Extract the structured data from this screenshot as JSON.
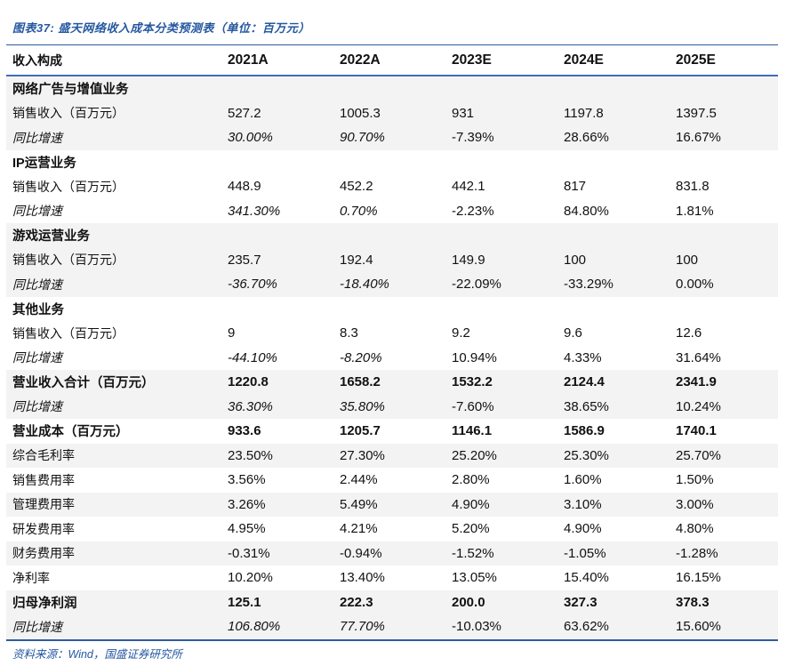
{
  "page": {
    "title": "图表37: 盛天网络收入成本分类预测表（单位：百万元）",
    "source": "资料来源：Wind，国盛证券研究所"
  },
  "colors": {
    "accent_blue": "#2457A0",
    "border_navy": "#2E5B9F",
    "header_underline": "#3E6DB5",
    "stripe_gray": "#F3F3F3"
  },
  "table": {
    "columns": [
      "收入构成",
      "2021A",
      "2022A",
      "2023E",
      "2024E",
      "2025E"
    ],
    "rows": [
      {
        "label": "网络广告与增值业务",
        "type": "section",
        "bg": "gray",
        "values": [
          "",
          "",
          "",
          "",
          ""
        ]
      },
      {
        "label": "销售收入（百万元）",
        "type": "data",
        "bg": "gray",
        "values": [
          "527.2",
          "1005.3",
          "931",
          "1197.8",
          "1397.5"
        ]
      },
      {
        "label": "同比增速",
        "type": "growth",
        "bg": "gray",
        "values": [
          "30.00%",
          "90.70%",
          "-7.39%",
          "28.66%",
          "16.67%"
        ],
        "italic_values": [
          true,
          true,
          false,
          false,
          false
        ]
      },
      {
        "label": "IP运营业务",
        "type": "section",
        "bg": "white",
        "values": [
          "",
          "",
          "",
          "",
          ""
        ]
      },
      {
        "label": "销售收入（百万元）",
        "type": "data",
        "bg": "white",
        "values": [
          "448.9",
          "452.2",
          "442.1",
          "817",
          "831.8"
        ]
      },
      {
        "label": "同比增速",
        "type": "growth",
        "bg": "white",
        "values": [
          "341.30%",
          "0.70%",
          "-2.23%",
          "84.80%",
          "1.81%"
        ],
        "italic_values": [
          true,
          true,
          false,
          false,
          false
        ]
      },
      {
        "label": "游戏运营业务",
        "type": "section",
        "bg": "gray",
        "values": [
          "",
          "",
          "",
          "",
          ""
        ]
      },
      {
        "label": "销售收入（百万元）",
        "type": "data",
        "bg": "gray",
        "values": [
          "235.7",
          "192.4",
          "149.9",
          "100",
          "100"
        ]
      },
      {
        "label": "同比增速",
        "type": "growth",
        "bg": "gray",
        "values": [
          "-36.70%",
          "-18.40%",
          "-22.09%",
          "-33.29%",
          "0.00%"
        ],
        "italic_values": [
          true,
          true,
          false,
          false,
          false
        ]
      },
      {
        "label": "其他业务",
        "type": "section",
        "bg": "white",
        "values": [
          "",
          "",
          "",
          "",
          ""
        ]
      },
      {
        "label": "销售收入（百万元）",
        "type": "data",
        "bg": "white",
        "values": [
          "9",
          "8.3",
          "9.2",
          "9.6",
          "12.6"
        ]
      },
      {
        "label": "同比增速",
        "type": "growth",
        "bg": "white",
        "values": [
          "-44.10%",
          "-8.20%",
          "10.94%",
          "4.33%",
          "31.64%"
        ],
        "italic_values": [
          true,
          true,
          false,
          false,
          false
        ]
      },
      {
        "label": "营业收入合计（百万元）",
        "type": "bold",
        "bg": "gray",
        "values": [
          "1220.8",
          "1658.2",
          "1532.2",
          "2124.4",
          "2341.9"
        ]
      },
      {
        "label": "同比增速",
        "type": "growth",
        "bg": "gray",
        "values": [
          "36.30%",
          "35.80%",
          "-7.60%",
          "38.65%",
          "10.24%"
        ],
        "italic_values": [
          true,
          true,
          false,
          false,
          false
        ]
      },
      {
        "label": "营业成本（百万元）",
        "type": "bold",
        "bg": "white",
        "values": [
          "933.6",
          "1205.7",
          "1146.1",
          "1586.9",
          "1740.1"
        ]
      },
      {
        "label": "综合毛利率",
        "type": "ratio",
        "bg": "gray",
        "values": [
          "23.50%",
          "27.30%",
          "25.20%",
          "25.30%",
          "25.70%"
        ]
      },
      {
        "label": "销售费用率",
        "type": "ratio",
        "bg": "white",
        "values": [
          "3.56%",
          "2.44%",
          "2.80%",
          "1.60%",
          "1.50%"
        ]
      },
      {
        "label": "管理费用率",
        "type": "ratio",
        "bg": "gray",
        "values": [
          "3.26%",
          "5.49%",
          "4.90%",
          "3.10%",
          "3.00%"
        ]
      },
      {
        "label": "研发费用率",
        "type": "ratio",
        "bg": "white",
        "values": [
          "4.95%",
          "4.21%",
          "5.20%",
          "4.90%",
          "4.80%"
        ]
      },
      {
        "label": "财务费用率",
        "type": "ratio",
        "bg": "gray",
        "values": [
          "-0.31%",
          "-0.94%",
          "-1.52%",
          "-1.05%",
          "-1.28%"
        ]
      },
      {
        "label": "净利率",
        "type": "ratio",
        "bg": "white",
        "values": [
          "10.20%",
          "13.40%",
          "13.05%",
          "15.40%",
          "16.15%"
        ]
      },
      {
        "label": "归母净利润",
        "type": "bold",
        "bg": "gray",
        "values": [
          "125.1",
          "222.3",
          "200.0",
          "327.3",
          "378.3"
        ]
      },
      {
        "label": "同比增速",
        "type": "growth",
        "bg": "gray",
        "values": [
          "106.80%",
          "77.70%",
          "-10.03%",
          "63.62%",
          "15.60%"
        ],
        "italic_values": [
          true,
          true,
          false,
          false,
          false
        ]
      }
    ]
  }
}
